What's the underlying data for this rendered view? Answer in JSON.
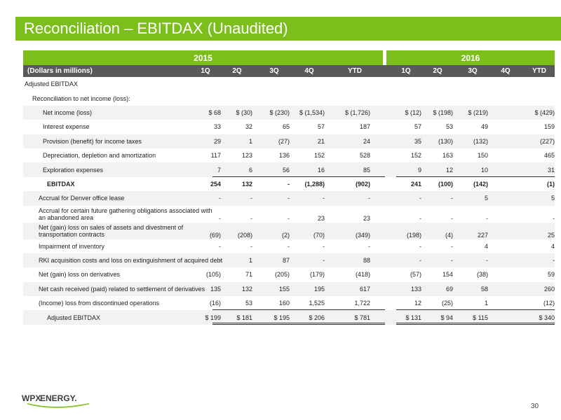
{
  "title": "Reconciliation – EBITDAX (Unaudited)",
  "years": [
    "2015",
    "2016"
  ],
  "header": {
    "label": "(Dollars in millions)",
    "cols": [
      "1Q",
      "2Q",
      "3Q",
      "4Q",
      "YTD",
      "1Q",
      "2Q",
      "3Q",
      "4Q",
      "YTD"
    ]
  },
  "sections": {
    "adjusted_ebitdax": "Adjusted EBITDAX",
    "reconciliation": "Reconciliation to net income (loss):"
  },
  "rows": [
    {
      "label": "Net income (loss)",
      "values": [
        "$ 68",
        "$ (30)",
        "$ (230)",
        "$ (1,534)",
        "$ (1,726)",
        "$ (12)",
        "$ (198)",
        "$ (219)",
        "",
        "$ (429)"
      ]
    },
    {
      "label": "Interest expense",
      "values": [
        "33",
        "32",
        "65",
        "57",
        "187",
        "57",
        "53",
        "49",
        "",
        "159"
      ]
    },
    {
      "label": "Provision (benefit) for income taxes",
      "values": [
        "29",
        "1",
        "(27)",
        "21",
        "24",
        "35",
        "(130)",
        "(132)",
        "",
        "(227)"
      ]
    },
    {
      "label": "Depreciation, depletion and amortization",
      "values": [
        "117",
        "123",
        "136",
        "152",
        "528",
        "152",
        "163",
        "150",
        "",
        "465"
      ]
    },
    {
      "label": "Exploration expenses",
      "values": [
        "7",
        "6",
        "56",
        "16",
        "85",
        "9",
        "12",
        "10",
        "",
        "31"
      ]
    },
    {
      "label": "EBITDAX",
      "values": [
        "254",
        "132",
        "-",
        "(1,288)",
        "(902)",
        "241",
        "(100)",
        "(142)",
        "",
        "(1)"
      ]
    },
    {
      "label": "Accrual for Denver office lease",
      "values": [
        "-",
        "-",
        "-",
        "-",
        "-",
        "-",
        "-",
        "5",
        "",
        "5"
      ]
    },
    {
      "label": "Accrual for certain future gathering obligations associated with an abandoned area",
      "values": [
        "-",
        "-",
        "-",
        "23",
        "23",
        "-",
        "-",
        "-",
        "",
        "-"
      ]
    },
    {
      "label": "Net (gain) loss on sales of assets and divestment of transportation contracts",
      "values": [
        "(69)",
        "(208)",
        "(2)",
        "(70)",
        "(349)",
        "(198)",
        "(4)",
        "227",
        "",
        "25"
      ]
    },
    {
      "label": "Impairment of inventory",
      "values": [
        "-",
        "-",
        "-",
        "-",
        "-",
        "-",
        "-",
        "4",
        "",
        "4"
      ]
    },
    {
      "label": "RKI acquisition costs and loss on extinguishment of acquired debt",
      "values": [
        "-",
        "1",
        "87",
        "-",
        "88",
        "-",
        "-",
        "-",
        "",
        "-"
      ]
    },
    {
      "label": "Net (gain) loss on derivatives",
      "values": [
        "(105)",
        "71",
        "(205)",
        "(179)",
        "(418)",
        "(57)",
        "154",
        "(38)",
        "",
        "59"
      ]
    },
    {
      "label": "Net cash received (paid) related to settlement of derivatives",
      "values": [
        "135",
        "132",
        "155",
        "195",
        "617",
        "133",
        "69",
        "58",
        "",
        "260"
      ]
    },
    {
      "label": "(Income) loss from discontinued operations",
      "values": [
        "(16)",
        "53",
        "160",
        "1,525",
        "1,722",
        "12",
        "(25)",
        "1",
        "",
        "(12)"
      ]
    },
    {
      "label": "Adjusted EBITDAX",
      "values": [
        "$ 199",
        "$ 181",
        "$ 195",
        "$ 206",
        "$ 781",
        "$ 131",
        "$ 94",
        "$ 115",
        "",
        "$ 340"
      ]
    }
  ],
  "logo": {
    "text_a": "WPX",
    "text_b": "ENERGY."
  },
  "page_number": "30",
  "colors": {
    "accent": "#7cbf1d",
    "header_band": "#595959",
    "stripe": "#f2f2f2"
  }
}
